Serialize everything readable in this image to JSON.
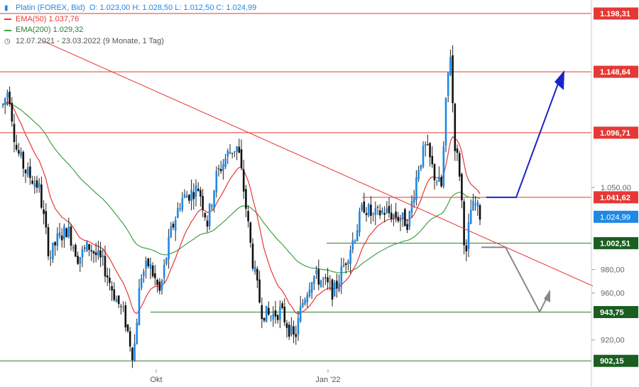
{
  "legend": {
    "instrument": "Platin (FOREX, Bid)",
    "ohlc": "O: 1.023,00  H: 1.028,50  L: 1.012,50  C: 1.024,99",
    "ema50": "EMA(50)  1.037,76",
    "ema200": "EMA(200)  1.029,32",
    "period": "12.07.2021 - 23.03.2022  (9 Monate, 1 Tag)"
  },
  "colors": {
    "candle_up": "#1e88e5",
    "candle_down": "#111111",
    "ema50": "#e53935",
    "ema200": "#43a047",
    "resistance": "#e53935",
    "support": "#2e7d32",
    "arrow_up": "#1a23c9",
    "arrow_down": "#888888"
  },
  "chart_data": {
    "type": "candlestick",
    "title": "Platin (FOREX, Bid)",
    "date_range": [
      "12.07.2021",
      "23.03.2022"
    ],
    "x_ticks": [
      "Okt",
      "Jan '22"
    ],
    "y_ticks": [
      "920,00",
      "960,00",
      "980,00",
      "1.050,00"
    ],
    "y_range": [
      895,
      1205
    ],
    "series": [
      {
        "name": "EMA(50)",
        "last": 1037.76
      },
      {
        "name": "EMA(200)",
        "last": 1029.32
      }
    ],
    "last_close": 1024.99,
    "last_close_label": "1.024,99",
    "horizontal_levels": [
      {
        "value": 1198.31,
        "label": "1.198,31",
        "kind": "resistance"
      },
      {
        "value": 1148.64,
        "label": "1.148,64",
        "kind": "resistance"
      },
      {
        "value": 1096.71,
        "label": "1.096,71",
        "kind": "resistance"
      },
      {
        "value": 1041.62,
        "label": "1.041,62",
        "kind": "resistance"
      },
      {
        "value": 1002.51,
        "label": "1.002,51",
        "kind": "support"
      },
      {
        "value": 943.75,
        "label": "943,75",
        "kind": "support"
      },
      {
        "value": 902.15,
        "label": "902,15",
        "kind": "support"
      }
    ]
  }
}
